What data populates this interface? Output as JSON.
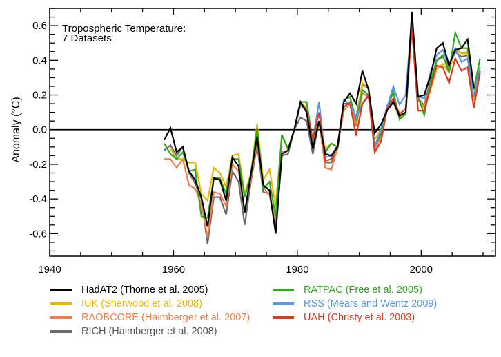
{
  "chart_data": {
    "type": "line",
    "title": "Tropospheric Temperature:",
    "subtitle": "7 Datasets",
    "xlabel": "",
    "ylabel": "Anomaly (°C)",
    "xlim": [
      1940,
      2012
    ],
    "ylim": [
      -0.73,
      0.7
    ],
    "x_ticks": [
      1940,
      1960,
      1980,
      2000
    ],
    "x_tick_labels": [
      "1940",
      "1960",
      "1980",
      "2000"
    ],
    "x_minor_step": 5,
    "y_ticks": [
      -0.6,
      -0.4,
      -0.2,
      0.0,
      0.2,
      0.4,
      0.6
    ],
    "y_tick_labels": [
      "-0.6",
      "-0.4",
      "-0.2",
      "0.0",
      "0.2",
      "0.4",
      "0.6"
    ],
    "y_minor_step": 0.05,
    "zero_line": true,
    "grid": false,
    "legend_position": "bottom",
    "series": [
      {
        "name": "HadAT2 (Thorne et al. 2005)",
        "color": "#000000",
        "x": [
          1958.5,
          1959.5,
          1960.5,
          1961.5,
          1962.5,
          1963.5,
          1964.5,
          1965.5,
          1966.5,
          1967.5,
          1968.5,
          1969.5,
          1970.5,
          1971.5,
          1972.5,
          1973.5,
          1974.5,
          1975.5,
          1976.5,
          1977.5,
          1978.5,
          1979.5,
          1980.5,
          1981.5,
          1982.5,
          1983.5,
          1984.5,
          1985.5,
          1986.5,
          1987.5,
          1988.5,
          1989.5,
          1990.5,
          1991.5,
          1992.5,
          1993.5,
          1994.5,
          1995.5,
          1996.5,
          1997.5,
          1998.5,
          1999.5,
          2000.5,
          2001.5,
          2002.5,
          2003.5,
          2004.5,
          2005.5,
          2006.5,
          2007.5,
          2008.5
        ],
        "values": [
          -0.06,
          0.01,
          -0.13,
          -0.1,
          -0.24,
          -0.29,
          -0.39,
          -0.56,
          -0.28,
          -0.29,
          -0.41,
          -0.16,
          -0.21,
          -0.48,
          -0.26,
          -0.04,
          -0.32,
          -0.35,
          -0.6,
          -0.14,
          -0.12,
          0.0,
          0.16,
          0.1,
          -0.11,
          0.05,
          -0.14,
          -0.15,
          -0.1,
          0.16,
          0.21,
          0.15,
          0.34,
          0.23,
          -0.02,
          0.03,
          0.11,
          0.16,
          0.08,
          0.1,
          0.68,
          0.19,
          0.2,
          0.31,
          0.47,
          0.5,
          0.37,
          0.46,
          0.47,
          0.52,
          0.24
        ]
      },
      {
        "name": "IUK (Sherwood et al. 2008)",
        "color": "#e6b800",
        "x": [
          1959.5,
          1960.5,
          1961.5,
          1962.5,
          1963.5,
          1964.5,
          1965.5,
          1966.5,
          1967.5,
          1968.5,
          1969.5,
          1970.5,
          1971.5,
          1972.5,
          1973.5,
          1974.5,
          1975.5,
          1976.5,
          1977.5,
          1978.5,
          1979.5,
          1980.5,
          1981.5,
          1982.5,
          1983.5,
          1984.5,
          1985.5,
          1986.5,
          1987.5,
          1988.5,
          1989.5,
          1990.5,
          1991.5,
          1992.5,
          1993.5,
          1994.5,
          1995.5,
          1996.5,
          1997.5,
          1998.5,
          1999.5,
          2000.5,
          2001.5,
          2002.5,
          2003.5,
          2004.5,
          2005.5,
          2006.5,
          2007.5,
          2008.5,
          2009.5
        ],
        "values": [
          -0.11,
          -0.17,
          -0.17,
          -0.19,
          -0.19,
          -0.37,
          -0.41,
          -0.22,
          -0.25,
          -0.33,
          -0.15,
          -0.14,
          -0.37,
          -0.25,
          0.03,
          -0.29,
          -0.23,
          -0.44,
          -0.03,
          -0.12,
          0.0,
          0.15,
          0.13,
          -0.08,
          0.05,
          -0.11,
          -0.08,
          -0.1,
          0.17,
          0.19,
          0.05,
          0.27,
          0.24,
          -0.06,
          0.0,
          0.12,
          0.17,
          0.07,
          0.09,
          0.61,
          0.18,
          0.12,
          0.23,
          0.35,
          0.38,
          0.33,
          0.47,
          0.44,
          0.44,
          0.18,
          0.33
        ]
      },
      {
        "name": "RAOBCORE (Haimberger et al. 2007)",
        "color": "#f57c46",
        "x": [
          1958.5,
          1959.5,
          1960.5,
          1961.5,
          1962.5,
          1963.5,
          1964.5,
          1965.5,
          1966.5,
          1967.5,
          1968.5,
          1969.5,
          1970.5,
          1971.5,
          1972.5,
          1973.5,
          1974.5,
          1975.5,
          1976.5,
          1977.5,
          1978.5,
          1979.5,
          1980.5,
          1981.5,
          1982.5,
          1983.5,
          1984.5,
          1985.5,
          1986.5,
          1987.5,
          1988.5,
          1989.5,
          1990.5,
          1991.5,
          1992.5,
          1993.5,
          1994.5,
          1995.5,
          1996.5,
          1997.5,
          1998.5,
          1999.5,
          2000.5,
          2001.5,
          2002.5,
          2003.5,
          2004.5,
          2005.5,
          2006.5,
          2007.5,
          2008.5,
          2009.5
        ],
        "values": [
          -0.17,
          -0.17,
          -0.22,
          -0.17,
          -0.32,
          -0.34,
          -0.43,
          -0.62,
          -0.36,
          -0.37,
          -0.44,
          -0.2,
          -0.24,
          -0.47,
          -0.28,
          -0.06,
          -0.33,
          -0.38,
          -0.53,
          -0.13,
          -0.12,
          0.0,
          0.14,
          0.11,
          -0.11,
          0.05,
          -0.22,
          -0.23,
          -0.1,
          0.11,
          0.15,
          0.02,
          0.21,
          0.19,
          -0.12,
          -0.04,
          0.12,
          0.16,
          0.07,
          0.09,
          0.6,
          0.17,
          0.13,
          0.26,
          0.4,
          0.43,
          0.34,
          0.46,
          0.44,
          0.45,
          0.17,
          0.33
        ]
      },
      {
        "name": "RICH (Haimberger et al. 2008)",
        "color": "#6b6b6b",
        "x": [
          1958.5,
          1959.5,
          1960.5,
          1961.5,
          1962.5,
          1963.5,
          1964.5,
          1965.5,
          1966.5,
          1967.5,
          1968.5,
          1969.5,
          1970.5,
          1971.5,
          1972.5,
          1973.5,
          1974.5,
          1975.5,
          1976.5,
          1977.5,
          1978.5,
          1979.5,
          1980.5,
          1981.5,
          1982.5,
          1983.5,
          1984.5,
          1985.5,
          1986.5,
          1987.5,
          1988.5,
          1989.5,
          1990.5,
          1991.5,
          1992.5,
          1993.5,
          1994.5,
          1995.5,
          1996.5,
          1997.5,
          1998.5,
          1999.5,
          2000.5,
          2001.5,
          2002.5,
          2003.5,
          2004.5,
          2005.5,
          2006.5,
          2007.5,
          2008.5,
          2009.5
        ],
        "values": [
          -0.12,
          -0.09,
          -0.15,
          -0.1,
          -0.25,
          -0.31,
          -0.4,
          -0.66,
          -0.39,
          -0.39,
          -0.49,
          -0.24,
          -0.3,
          -0.55,
          -0.3,
          -0.09,
          -0.36,
          -0.37,
          -0.57,
          -0.15,
          -0.14,
          0.0,
          0.07,
          0.05,
          -0.14,
          0.05,
          -0.19,
          -0.19,
          -0.11,
          0.13,
          0.16,
          0.07,
          0.26,
          0.24,
          -0.09,
          -0.02,
          0.14,
          0.17,
          0.08,
          0.09,
          0.62,
          0.18,
          0.14,
          0.28,
          0.4,
          0.42,
          0.36,
          0.45,
          0.42,
          0.43,
          0.17,
          0.34
        ]
      },
      {
        "name": "RATPAC (Free et al. 2005)",
        "color": "#2eaa1e",
        "x": [
          1958.5,
          1959.5,
          1960.5,
          1961.5,
          1962.5,
          1963.5,
          1964.5,
          1965.5,
          1966.5,
          1967.5,
          1968.5,
          1969.5,
          1970.5,
          1971.5,
          1972.5,
          1973.5,
          1974.5,
          1975.5,
          1976.5,
          1977.5,
          1978.5,
          1979.5,
          1980.5,
          1981.5,
          1982.5,
          1983.5,
          1984.5,
          1985.5,
          1986.5,
          1987.5,
          1988.5,
          1989.5,
          1990.5,
          1991.5,
          1992.5,
          1993.5,
          1994.5,
          1995.5,
          1996.5,
          1997.5,
          1998.5,
          1999.5,
          2000.5,
          2001.5,
          2002.5,
          2003.5,
          2004.5,
          2005.5,
          2006.5,
          2007.5,
          2008.5,
          2009.5
        ],
        "values": [
          -0.08,
          -0.14,
          -0.17,
          -0.13,
          -0.24,
          -0.23,
          -0.5,
          -0.51,
          -0.28,
          -0.28,
          -0.37,
          -0.17,
          -0.17,
          -0.39,
          -0.26,
          0.01,
          -0.34,
          -0.3,
          -0.5,
          -0.03,
          -0.11,
          0.0,
          0.16,
          0.16,
          -0.07,
          0.05,
          -0.13,
          -0.08,
          -0.1,
          0.17,
          0.19,
          0.05,
          0.23,
          0.2,
          -0.09,
          -0.03,
          0.12,
          0.22,
          0.06,
          0.09,
          0.61,
          0.19,
          0.085,
          0.27,
          0.4,
          0.43,
          0.33,
          0.56,
          0.47,
          0.47,
          0.23,
          0.41
        ]
      },
      {
        "name": "RSS (Mears and Wentz 2009)",
        "color": "#5b95e8",
        "x": [
          1979.5,
          1980.5,
          1981.5,
          1982.5,
          1983.5,
          1984.5,
          1985.5,
          1986.5,
          1987.5,
          1988.5,
          1989.5,
          1990.5,
          1991.5,
          1992.5,
          1993.5,
          1994.5,
          1995.5,
          1996.5,
          1997.5,
          1998.5,
          1999.5,
          2000.5,
          2001.5,
          2002.5,
          2003.5,
          2004.5,
          2005.5,
          2006.5,
          2007.5,
          2008.5,
          2009.5
        ],
        "values": [
          0.0,
          0.14,
          0.12,
          -0.06,
          0.16,
          -0.16,
          -0.15,
          -0.09,
          0.17,
          0.15,
          0.07,
          0.15,
          0.19,
          -0.1,
          0.0,
          0.13,
          0.25,
          0.145,
          0.2,
          0.65,
          0.19,
          0.18,
          0.33,
          0.43,
          0.46,
          0.37,
          0.47,
          0.39,
          0.41,
          0.19,
          0.36
        ]
      },
      {
        "name": "UAH (Christy et al. 2003)",
        "color": "#dd3a1c",
        "x": [
          1979.5,
          1980.5,
          1981.5,
          1982.5,
          1983.5,
          1984.5,
          1985.5,
          1986.5,
          1987.5,
          1988.5,
          1989.5,
          1990.5,
          1991.5,
          1992.5,
          1993.5,
          1994.5,
          1995.5,
          1996.5,
          1997.5,
          1998.5,
          1999.5,
          2000.5,
          2001.5,
          2002.5,
          2003.5,
          2004.5,
          2005.5,
          2006.5,
          2007.5,
          2008.5,
          2009.5
        ],
        "values": [
          0.0,
          0.16,
          0.11,
          -0.055,
          0.1,
          -0.18,
          -0.17,
          -0.09,
          0.15,
          0.15,
          -0.035,
          0.15,
          0.2,
          -0.13,
          -0.07,
          0.12,
          0.18,
          0.09,
          0.12,
          0.585,
          0.11,
          0.11,
          0.24,
          0.37,
          0.36,
          0.27,
          0.41,
          0.34,
          0.36,
          0.125,
          0.33
        ]
      }
    ]
  }
}
